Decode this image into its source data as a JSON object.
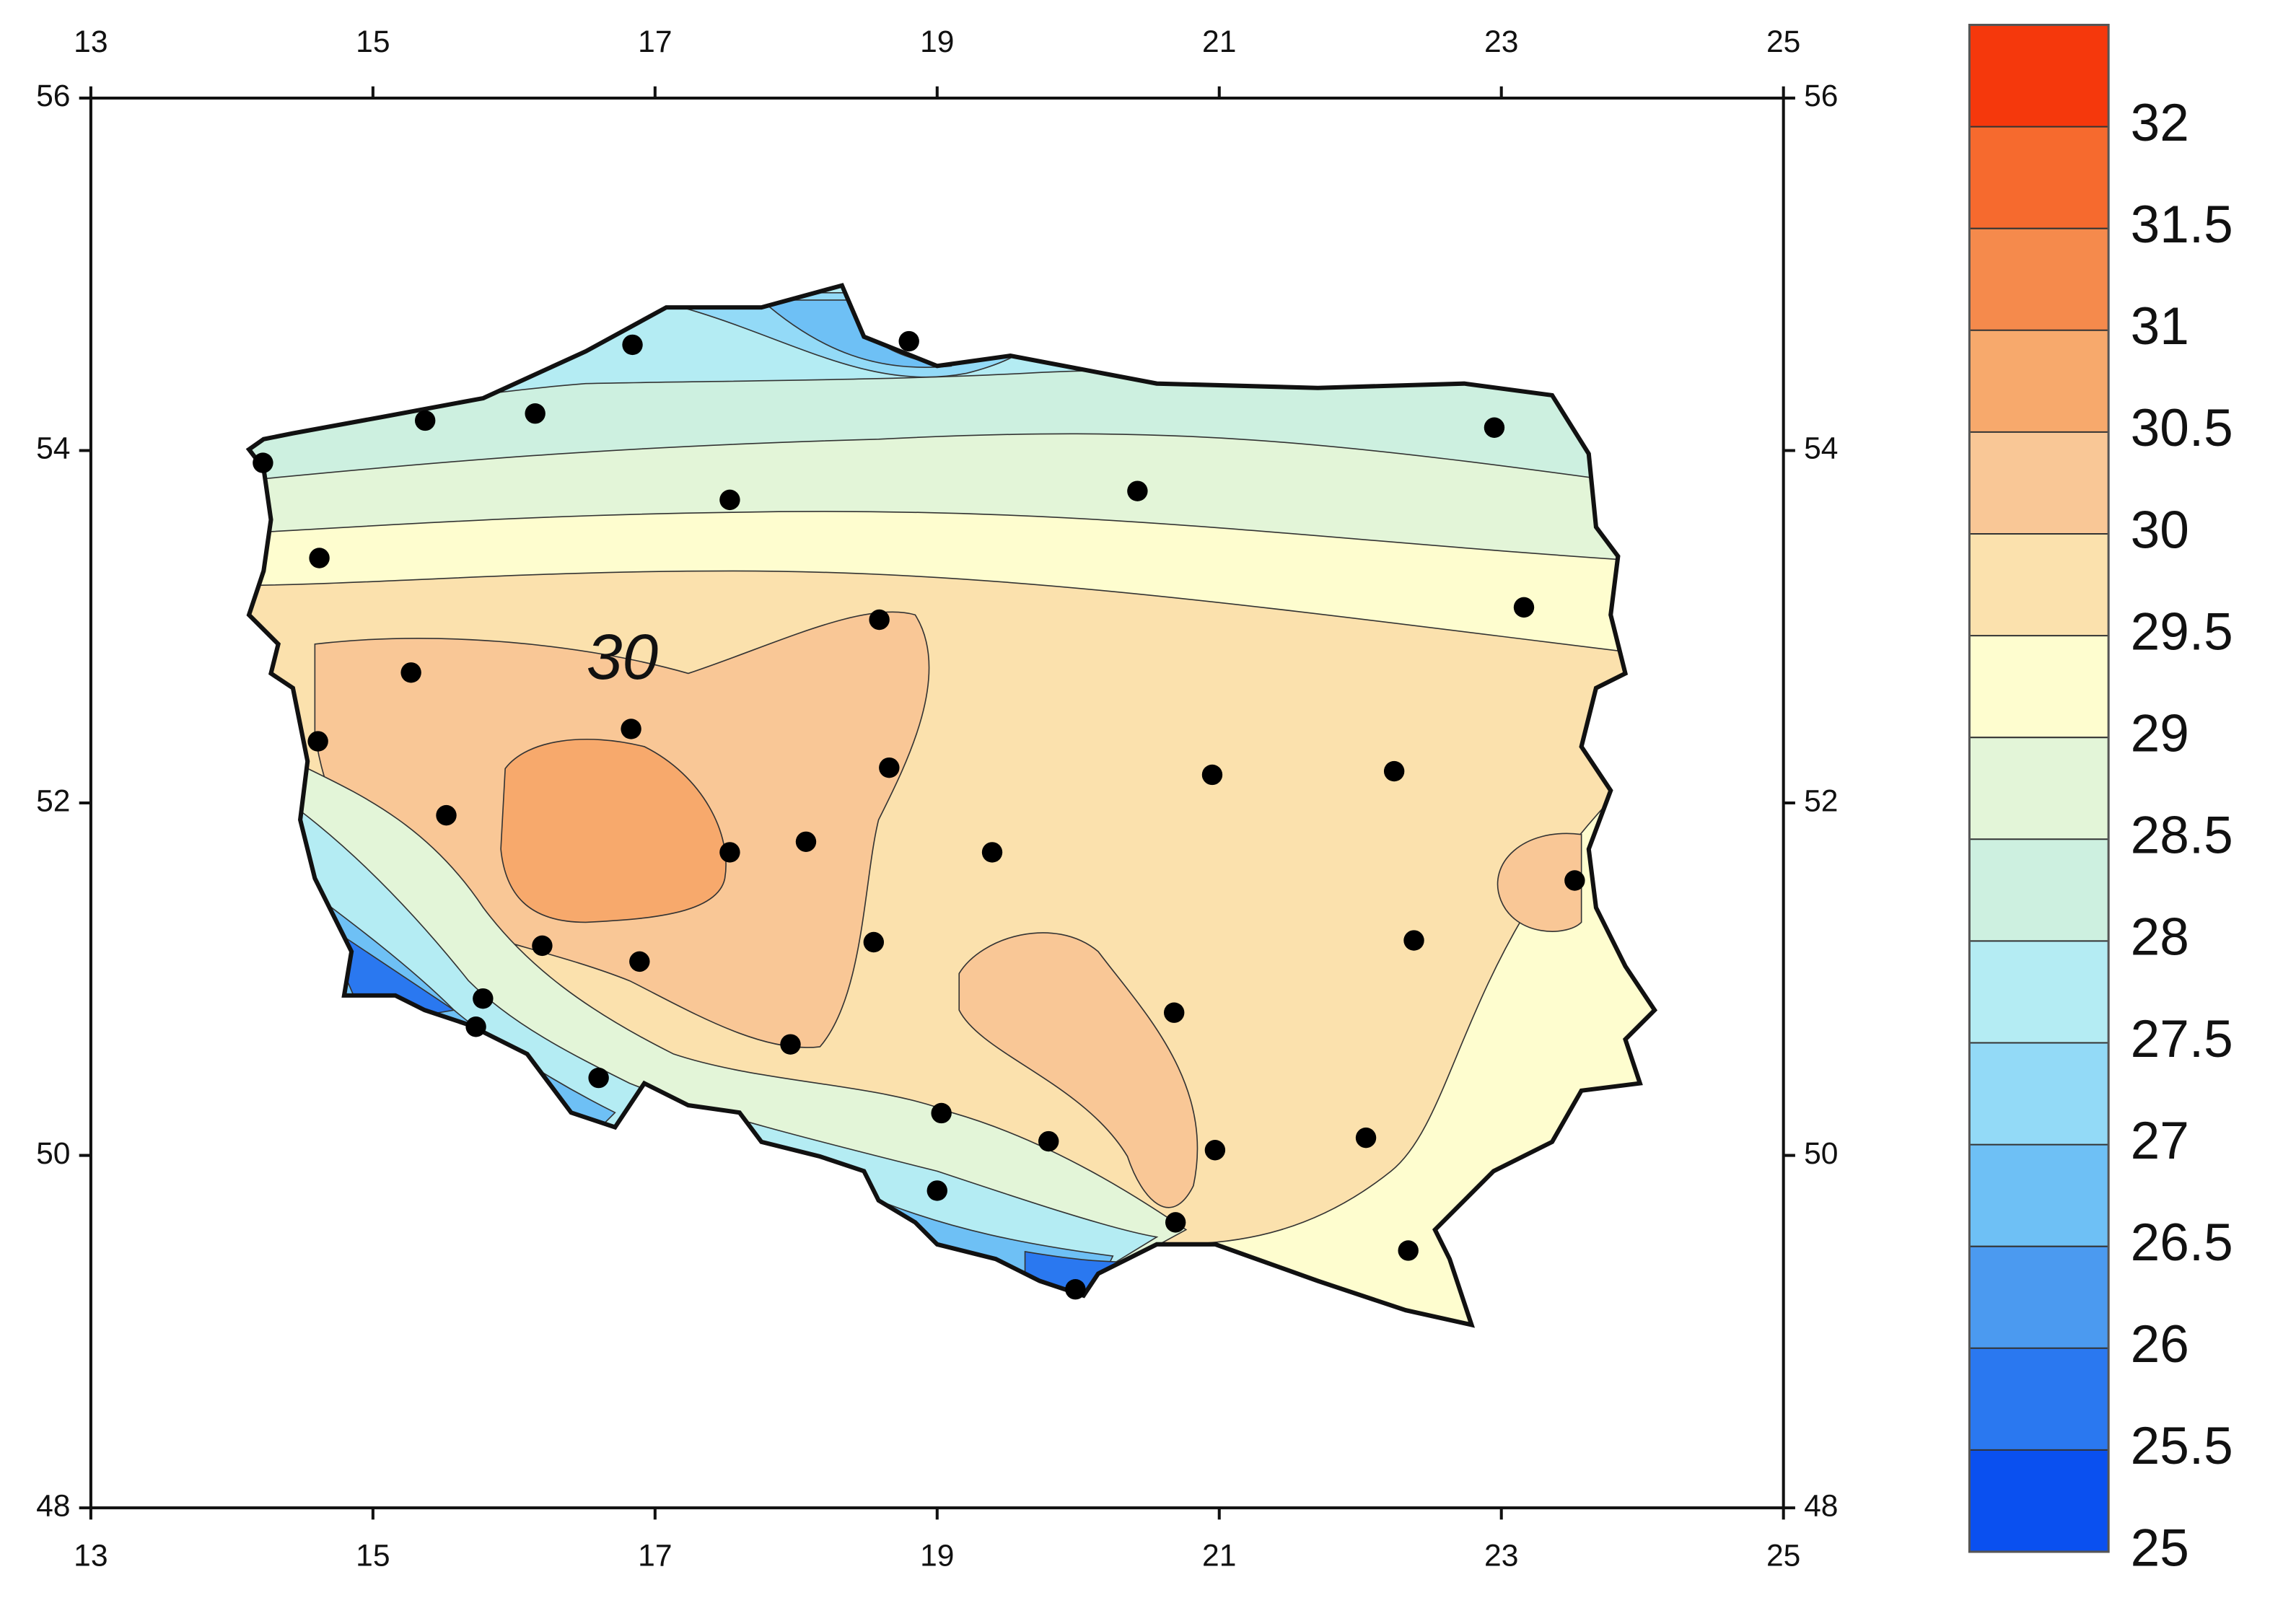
{
  "chart_data": {
    "type": "contour-map",
    "xlim": [
      13,
      25
    ],
    "ylim": [
      48,
      56
    ],
    "xticks": [
      13,
      15,
      17,
      19,
      21,
      23,
      25
    ],
    "yticks": [
      48,
      50,
      52,
      54,
      56
    ],
    "clim": [
      25,
      32.5
    ],
    "cticks": [
      25,
      25.5,
      26,
      26.5,
      27,
      27.5,
      28,
      28.5,
      29,
      29.5,
      30,
      30.5,
      31,
      31.5,
      32
    ],
    "colors": [
      "#0a50f0",
      "#2a78f0",
      "#4b9af0",
      "#6ec0f5",
      "#93daf7",
      "#b4ecf3",
      "#cdf0e0",
      "#e3f5d8",
      "#fefdcf",
      "#fbe1ad",
      "#f9c796",
      "#f7a96c",
      "#f58a4c",
      "#f66a2e",
      "#f5380c"
    ],
    "contour_label": "30",
    "stations": {
      "x": [
        16.84,
        18.8,
        15.37,
        16.15,
        14.22,
        22.95,
        17.53,
        20.42,
        14.62,
        23.16,
        18.59,
        15.27,
        16.83,
        14.61,
        18.66,
        20.95,
        22.24,
        15.52,
        17.53,
        18.07,
        19.39,
        23.52,
        18.55,
        16.2,
        16.89,
        22.38,
        15.78,
        15.73,
        20.68,
        17.96,
        16.6,
        19.03,
        19.79,
        20.97,
        22.04,
        19.0,
        20.69,
        22.34,
        19.98
      ],
      "y": [
        54.6,
        54.62,
        54.17,
        54.21,
        53.93,
        54.13,
        53.72,
        53.77,
        53.39,
        53.11,
        53.04,
        52.74,
        52.42,
        52.35,
        52.2,
        52.16,
        52.18,
        51.93,
        51.72,
        51.78,
        51.72,
        51.56,
        51.21,
        51.19,
        51.1,
        51.22,
        50.89,
        50.73,
        50.81,
        50.63,
        50.44,
        50.24,
        50.08,
        50.03,
        50.1,
        49.8,
        49.62,
        49.46,
        49.24
      ]
    }
  }
}
